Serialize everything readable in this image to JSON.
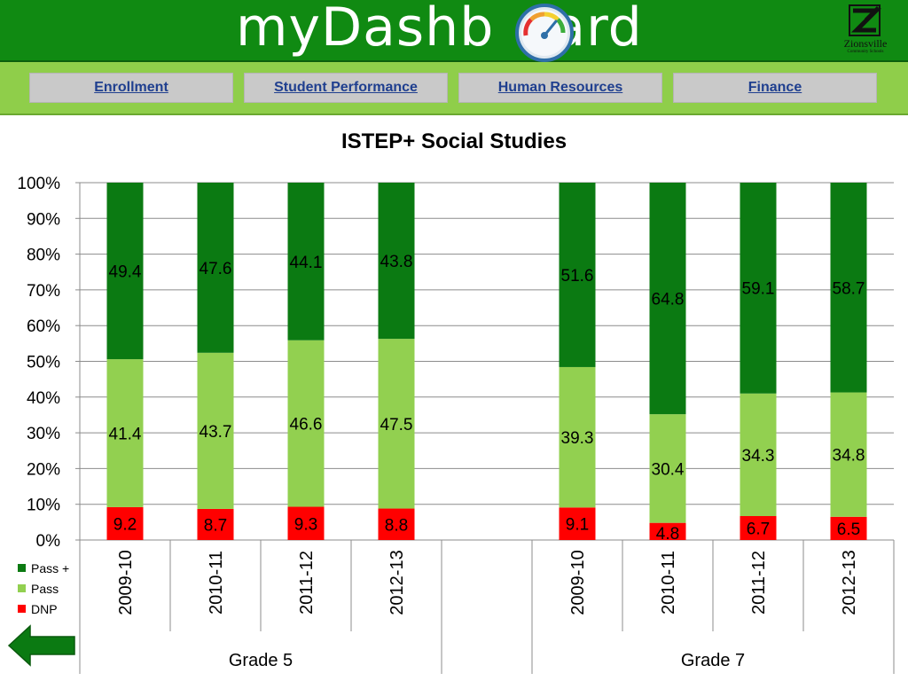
{
  "header": {
    "title_part1": "myDashb",
    "title_part2": "ard",
    "logo_text": "Zionsville",
    "logo_subtext": "Community Schools",
    "bg_color": "#108a12"
  },
  "nav": {
    "items": [
      {
        "label": "Enrollment"
      },
      {
        "label": "Student Performance"
      },
      {
        "label": "Human Resources"
      },
      {
        "label": "Finance"
      }
    ],
    "bar_color": "#8fce4a",
    "button_color": "#c9c9c9",
    "link_color": "#1f3f8f"
  },
  "chart_data": {
    "type": "bar",
    "stacked": true,
    "percent_stacked": true,
    "title": "ISTEP+ Social Studies",
    "ylim": [
      0,
      100
    ],
    "yticks": [
      "0%",
      "10%",
      "20%",
      "30%",
      "40%",
      "50%",
      "60%",
      "70%",
      "80%",
      "90%",
      "100%"
    ],
    "grid": true,
    "legend_position": "bottom-left",
    "groups": [
      {
        "label": "Grade 5",
        "categories": [
          "2009-10",
          "2010-11",
          "2011-12",
          "2012-13"
        ]
      },
      {
        "label": "",
        "categories": [
          ""
        ]
      },
      {
        "label": "Grade 7",
        "categories": [
          "2009-10",
          "2010-11",
          "2011-12",
          "2012-13"
        ]
      }
    ],
    "series": [
      {
        "name": "DNP",
        "color": "#ff0000",
        "values": [
          9.2,
          8.7,
          9.3,
          8.8,
          null,
          9.1,
          4.8,
          6.7,
          6.5
        ]
      },
      {
        "name": "Pass",
        "color": "#92d050",
        "values": [
          41.4,
          43.7,
          46.6,
          47.5,
          null,
          39.3,
          30.4,
          34.3,
          34.8
        ]
      },
      {
        "name": "Pass +",
        "color": "#0b7a12",
        "values": [
          49.4,
          47.6,
          44.1,
          43.8,
          null,
          51.6,
          64.8,
          59.1,
          58.7
        ]
      }
    ],
    "data_label_text": [
      "9.2",
      "8.7",
      "9.3",
      "8.8",
      "",
      "9.1",
      "4.8",
      "6.7",
      "6.5",
      "41.4",
      "43.7",
      "46.6",
      "47.5",
      "",
      "39.3",
      "30.4",
      "34.3",
      "34.8",
      "49.4",
      "47.6",
      "44.1",
      "43.8",
      "",
      "51.6",
      "64.8",
      "59.1",
      "58.7"
    ]
  },
  "legend": {
    "items": [
      {
        "label": "Pass +",
        "color": "#0b7a12"
      },
      {
        "label": "Pass",
        "color": "#92d050"
      },
      {
        "label": "DNP",
        "color": "#ff0000"
      }
    ]
  },
  "back_button": {
    "icon": "back-arrow-icon",
    "color": "#0b7a12"
  }
}
